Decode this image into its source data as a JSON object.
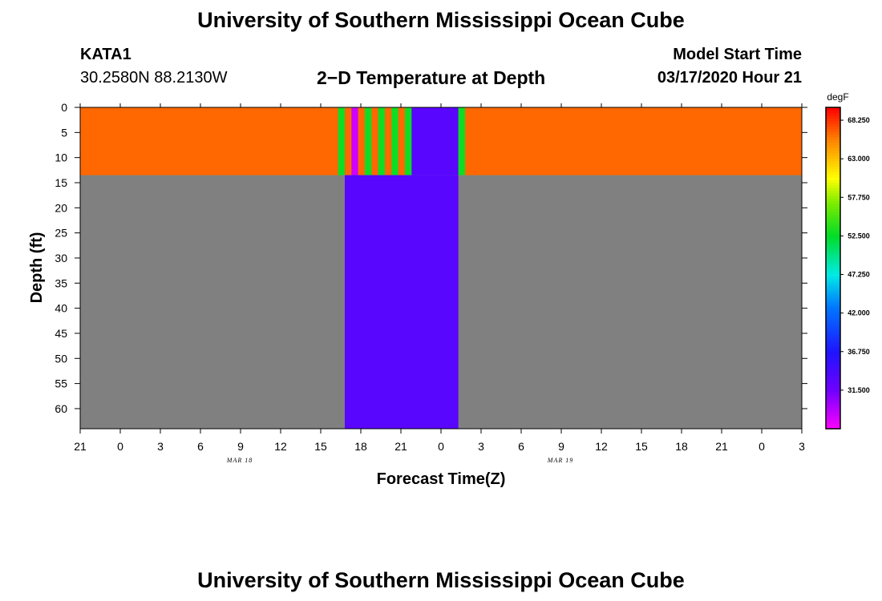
{
  "header": {
    "title": "University of Southern Mississippi Ocean Cube",
    "station_id": "KATA1",
    "coordinates": "30.2580N 88.2130W",
    "subtitle": "2−D Temperature at Depth",
    "model_start_label": "Model Start Time",
    "model_start_value": "03/17/2020 Hour 21"
  },
  "footer": {
    "title": "University of Southern Mississippi Ocean Cube"
  },
  "chart_data": {
    "type": "heatmap",
    "title": "2−D Temperature at Depth",
    "xlabel": "Forecast Time(Z)",
    "ylabel": "Depth (ft)",
    "x_unit": "forecast hour from 03/17/2020 21Z",
    "x_range": [
      0,
      54
    ],
    "x_ticks": [
      "21",
      "0",
      "3",
      "6",
      "9",
      "12",
      "15",
      "18",
      "21",
      "0",
      "3",
      "6",
      "9",
      "12",
      "15",
      "18",
      "21",
      "0",
      "3"
    ],
    "date_labels": [
      {
        "label": "MAR 18",
        "at_tick": "12"
      },
      {
        "label": "MAR 19",
        "at_tick": "12"
      }
    ],
    "y_range": [
      0,
      64
    ],
    "y_ticks": [
      0,
      5,
      10,
      15,
      20,
      25,
      30,
      35,
      40,
      45,
      50,
      55,
      60
    ],
    "water_depth_ft": 13.5,
    "colorbar": {
      "unit": "degF",
      "min": 26.25,
      "max": 70.0,
      "tick_values": [
        68.25,
        63.0,
        57.75,
        52.5,
        47.25,
        42.0,
        36.75,
        31.5
      ],
      "tick_labels": [
        "68.250",
        "63.000",
        "57.750",
        "52.500",
        "47.250",
        "42.000",
        "36.750",
        "31.500"
      ]
    },
    "segments": [
      {
        "from": 0.0,
        "to": 19.3,
        "temp": 66.5
      },
      {
        "from": 19.3,
        "to": 19.8,
        "temp": 53.0
      },
      {
        "from": 19.8,
        "to": 20.3,
        "temp": 66.5
      },
      {
        "from": 20.3,
        "to": 20.8,
        "temp": 28.0
      },
      {
        "from": 20.8,
        "to": 21.3,
        "temp": 66.5
      },
      {
        "from": 21.3,
        "to": 21.8,
        "temp": 53.0
      },
      {
        "from": 21.8,
        "to": 22.3,
        "temp": 66.5
      },
      {
        "from": 22.3,
        "to": 22.8,
        "temp": 53.0
      },
      {
        "from": 22.8,
        "to": 23.3,
        "temp": 66.5
      },
      {
        "from": 23.3,
        "to": 23.8,
        "temp": 53.0
      },
      {
        "from": 23.8,
        "to": 24.3,
        "temp": 66.5
      },
      {
        "from": 24.3,
        "to": 24.8,
        "temp": 53.0
      },
      {
        "from": 24.8,
        "to": 28.3,
        "temp": 33.0
      },
      {
        "from": 28.3,
        "to": 28.8,
        "temp": 53.0
      },
      {
        "from": 28.8,
        "to": 54.0,
        "temp": 66.5
      }
    ],
    "deep_missing": [
      {
        "from": 0.0,
        "to": 19.8,
        "state": "no data"
      },
      {
        "from": 19.8,
        "to": 28.3,
        "temp": 33.0
      },
      {
        "from": 28.3,
        "to": 54.0,
        "state": "no data"
      }
    ],
    "colors": {
      "missing": "#808080",
      "frame": "#000000"
    }
  }
}
